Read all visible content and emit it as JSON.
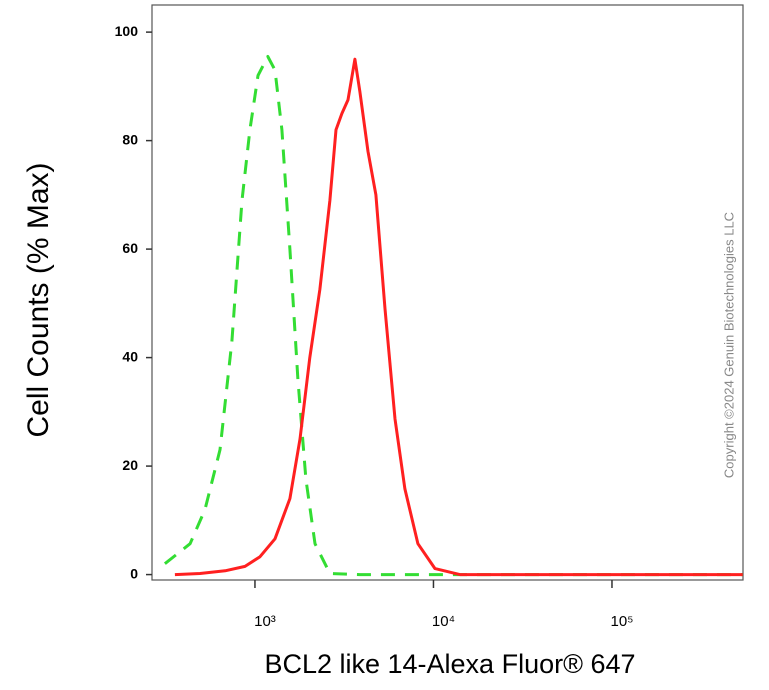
{
  "chart_data": {
    "type": "line",
    "xlabel": "BCL2 like 14-Alexa Fluor® 647",
    "ylabel": "Cell Counts (% Max)",
    "annotation": "Copyright ©2024 Genuin Biotechnologies LLC",
    "xscale": "log",
    "xlim": [
      265,
      542000
    ],
    "ylim": [
      -1,
      105
    ],
    "xticks": [
      {
        "value": 1000,
        "label": "10³"
      },
      {
        "value": 10000,
        "label": "10⁴"
      },
      {
        "value": 100000,
        "label": "10⁵"
      }
    ],
    "yticks": [
      0,
      20,
      40,
      60,
      80,
      100
    ],
    "grid": false,
    "series": [
      {
        "color": "#33dd33",
        "dash": true,
        "x": [
          313,
          433,
          525,
          637,
          743,
          846,
          937,
          1040,
          1180,
          1295,
          1416,
          1570,
          1740,
          1930,
          2170,
          2630,
          3870,
          6490,
          540000
        ],
        "values": [
          2,
          5.7,
          12,
          23,
          43,
          69,
          82,
          92,
          95.5,
          93,
          82,
          60,
          36,
          17.6,
          5.7,
          0.2,
          0,
          0,
          0
        ]
      },
      {
        "color": "#ff2020",
        "dash": false,
        "x": [
          356,
          492,
          680,
          879,
          1067,
          1295,
          1570,
          1788,
          2030,
          2310,
          2630,
          2843,
          3070,
          3320,
          3630,
          3870,
          4300,
          4760,
          5350,
          6090,
          6920,
          8180,
          10200,
          14060,
          540000
        ],
        "values": [
          0,
          0.2,
          0.7,
          1.5,
          3.3,
          6.6,
          14,
          25,
          40,
          52.6,
          69,
          82,
          85,
          87.5,
          95,
          89,
          78,
          70,
          49,
          28.7,
          15.8,
          5.7,
          1.1,
          0,
          0
        ]
      }
    ]
  }
}
